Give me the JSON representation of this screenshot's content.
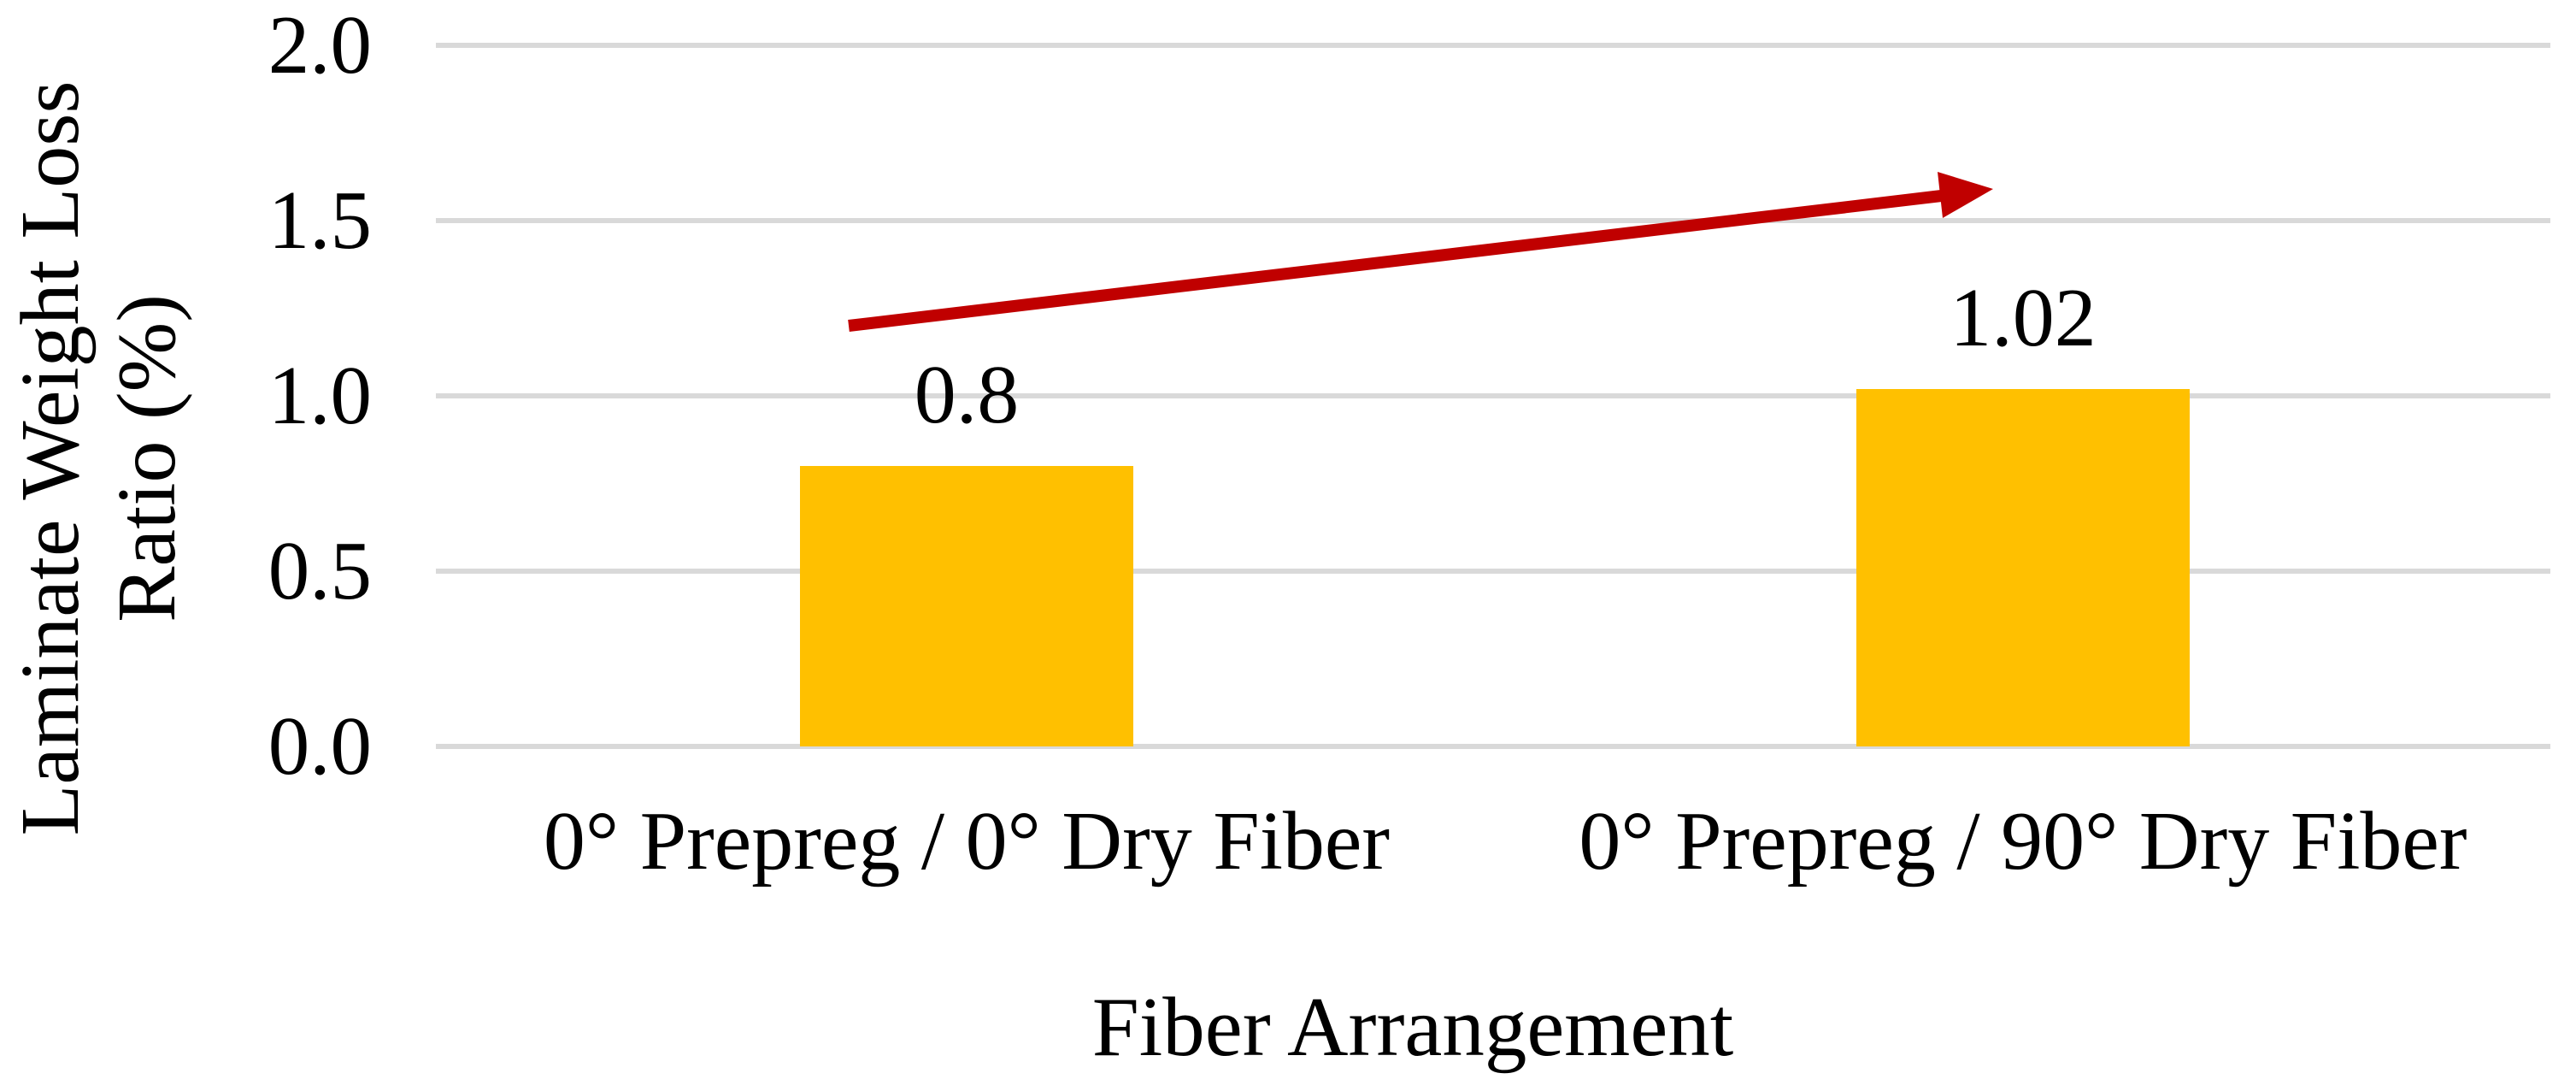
{
  "chart_data": {
    "type": "bar",
    "title": "",
    "categories": [
      "0° Prepreg / 0° Dry Fiber",
      "0° Prepreg / 90° Dry Fiber"
    ],
    "values": [
      0.8,
      1.02
    ],
    "data_labels": [
      "0.8",
      "1.02"
    ],
    "xlabel": "Fiber Arrangement",
    "ylabel": "Laminate Weight Loss Ratio (%)",
    "ylabel_lines": [
      "Laminate Weight Loss",
      "Ratio (%)"
    ],
    "ylim": [
      0,
      2.0
    ],
    "ytick_labels": [
      "2.0",
      "1.5",
      "1.0",
      "0.5",
      "0.0"
    ],
    "ytick_values": [
      2.0,
      1.5,
      1.0,
      0.5,
      0.0
    ],
    "grid": true,
    "legend": "none",
    "colors": {
      "bar_fill": "#FFC000",
      "gridline": "#D9D9D9",
      "text": "#000000",
      "annotation_arrow": "#C00000",
      "background": "#FFFFFF"
    },
    "annotation": {
      "shape": "arrow",
      "meaning": "increasing-trend",
      "direction": "up-right",
      "color": "#C00000"
    }
  }
}
